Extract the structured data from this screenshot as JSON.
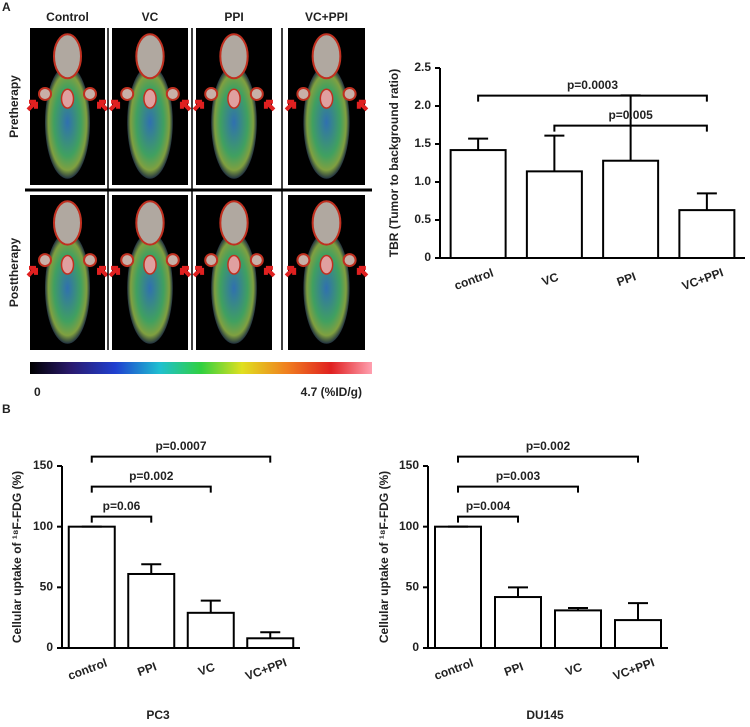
{
  "panels": [
    "A",
    "B"
  ],
  "images": {
    "columns": [
      "Control",
      "VC",
      "PPI",
      "VC+PPI"
    ],
    "rows": [
      "Pretherapy",
      "Posttherapy"
    ]
  },
  "colorbar": {
    "labels": [
      "0",
      "4.7 (%ID/g)"
    ]
  },
  "chart_data": [
    {
      "type": "bar",
      "ylabel": "TBR (Tumor to background ratio)",
      "categories": [
        "control",
        "VC",
        "PPI",
        "VC+PPI"
      ],
      "values": [
        1.42,
        1.14,
        1.28,
        0.63
      ],
      "errors": [
        0.15,
        0.47,
        0.86,
        0.22
      ],
      "color": "#ffffff",
      "ylim": [
        0,
        2.5
      ],
      "yticks": [
        0,
        0.5,
        {
          "value": 1,
          "label": "1.0"
        },
        1.5,
        {
          "value": 2,
          "label": "2.0"
        },
        2.5
      ],
      "annotations": [
        {
          "text": "p=0.005",
          "from": 1,
          "to": 3
        },
        {
          "text": "p=0.0003",
          "from": 0,
          "to": 3
        }
      ]
    },
    {
      "type": "bar",
      "ylabel": "Cellular uptake of ¹⁸F-FDG (%)",
      "subtitle": "PC3",
      "categories": [
        "control",
        "PPI",
        "VC",
        "VC+PPI"
      ],
      "values": [
        100,
        61,
        29,
        8
      ],
      "errors": [
        0,
        8,
        10,
        5
      ],
      "color": "#ffffff",
      "ylim": [
        0,
        150
      ],
      "yticks": [
        0,
        50,
        100,
        150
      ],
      "annotations": [
        {
          "text": "p=0.06",
          "from": 0,
          "to": 1
        },
        {
          "text": "p=0.002",
          "from": 0,
          "to": 2
        },
        {
          "text": "p=0.0007",
          "from": 0,
          "to": 3
        }
      ]
    },
    {
      "type": "bar",
      "ylabel": "Cellular uptake of ¹⁸F-FDG (%)",
      "subtitle": "DU145",
      "categories": [
        "control",
        "PPI",
        "VC",
        "VC+PPI"
      ],
      "values": [
        100,
        42,
        31,
        23
      ],
      "errors": [
        0,
        8,
        2,
        14
      ],
      "color": "#ffffff",
      "ylim": [
        0,
        150
      ],
      "yticks": [
        0,
        50,
        100,
        150
      ],
      "annotations": [
        {
          "text": "p=0.004",
          "from": 0,
          "to": 1
        },
        {
          "text": "p=0.003",
          "from": 0,
          "to": 2
        },
        {
          "text": "p=0.002",
          "from": 0,
          "to": 3
        }
      ]
    }
  ]
}
